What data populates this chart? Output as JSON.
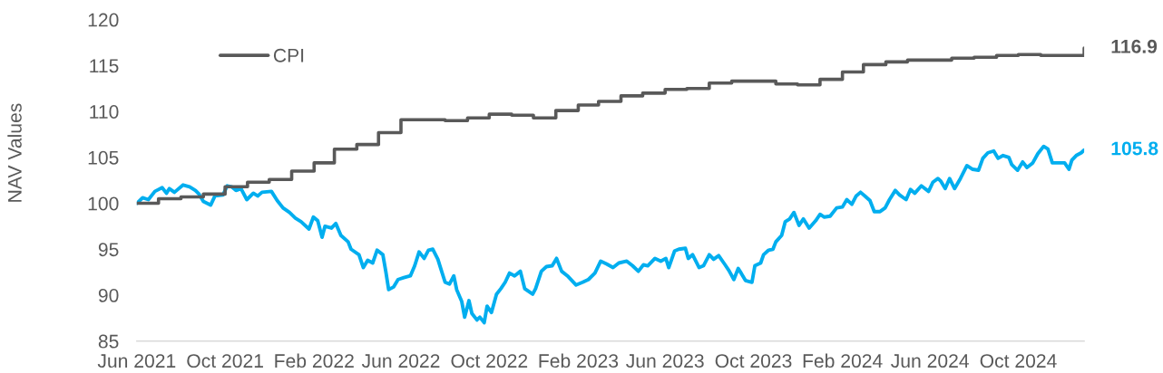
{
  "chart_data": {
    "type": "line",
    "ylabel": "NAV Values",
    "legend": "top left",
    "xlim": [
      "2021-06-01",
      "2024-12-31"
    ],
    "ylim": [
      85,
      120
    ],
    "xticks": [
      {
        "value": "2021-06-01",
        "label": "Jun 2021"
      },
      {
        "value": "2021-10-01",
        "label": "Oct 2021"
      },
      {
        "value": "2022-02-01",
        "label": "Feb 2022"
      },
      {
        "value": "2022-06-01",
        "label": "Jun 2022"
      },
      {
        "value": "2022-10-01",
        "label": "Oct 2022"
      },
      {
        "value": "2023-02-01",
        "label": "Feb 2023"
      },
      {
        "value": "2023-06-01",
        "label": "Jun 2023"
      },
      {
        "value": "2023-10-01",
        "label": "Oct 2023"
      },
      {
        "value": "2024-02-01",
        "label": "Feb 2024"
      },
      {
        "value": "2024-06-01",
        "label": "Jun 2024"
      },
      {
        "value": "2024-10-01",
        "label": "Oct 2024"
      }
    ],
    "yticks": [
      85,
      90,
      95,
      100,
      105,
      110,
      115,
      120
    ],
    "series": [
      {
        "color": "#00aeef",
        "x": [
          "2021-06-01",
          "2021-06-09",
          "2021-06-17",
          "2021-06-26",
          "2021-07-06",
          "2021-07-12",
          "2021-07-16",
          "2021-07-23",
          "2021-08-04",
          "2021-08-13",
          "2021-08-21",
          "2021-08-26",
          "2021-09-01",
          "2021-09-11",
          "2021-09-17",
          "2021-09-28",
          "2021-10-04",
          "2021-10-10",
          "2021-10-16",
          "2021-10-23",
          "2021-10-31",
          "2021-11-09",
          "2021-11-15",
          "2021-11-21",
          "2021-12-04",
          "2021-12-12",
          "2021-12-20",
          "2021-12-29",
          "2022-01-06",
          "2022-01-14",
          "2022-01-25",
          "2022-01-31",
          "2022-02-06",
          "2022-02-12",
          "2022-02-16",
          "2022-02-25",
          "2022-03-03",
          "2022-03-10",
          "2022-03-20",
          "2022-03-24",
          "2022-04-04",
          "2022-04-10",
          "2022-04-16",
          "2022-04-23",
          "2022-04-29",
          "2022-05-07",
          "2022-05-11",
          "2022-05-15",
          "2022-05-22",
          "2022-05-28",
          "2022-06-05",
          "2022-06-14",
          "2022-06-20",
          "2022-06-26",
          "2022-07-03",
          "2022-07-09",
          "2022-07-15",
          "2022-07-22",
          "2022-07-26",
          "2022-08-01",
          "2022-08-07",
          "2022-08-13",
          "2022-08-17",
          "2022-08-24",
          "2022-08-28",
          "2022-09-03",
          "2022-09-07",
          "2022-09-14",
          "2022-09-18",
          "2022-09-24",
          "2022-09-28",
          "2022-10-04",
          "2022-10-11",
          "2022-10-17",
          "2022-10-23",
          "2022-10-29",
          "2022-11-05",
          "2022-11-13",
          "2022-11-19",
          "2022-11-30",
          "2022-12-04",
          "2022-12-12",
          "2022-12-19",
          "2022-12-27",
          "2023-01-02",
          "2023-01-09",
          "2023-01-17",
          "2023-01-29",
          "2023-02-07",
          "2023-02-15",
          "2023-02-24",
          "2023-03-04",
          "2023-03-12",
          "2023-03-21",
          "2023-03-29",
          "2023-04-09",
          "2023-04-17",
          "2023-04-25",
          "2023-05-02",
          "2023-05-08",
          "2023-05-18",
          "2023-05-26",
          "2023-06-02",
          "2023-06-06",
          "2023-06-14",
          "2023-06-20",
          "2023-06-29",
          "2023-07-03",
          "2023-07-09",
          "2023-07-18",
          "2023-07-24",
          "2023-08-01",
          "2023-08-07",
          "2023-08-14",
          "2023-08-22",
          "2023-08-28",
          "2023-09-04",
          "2023-09-10",
          "2023-09-14",
          "2023-09-20",
          "2023-09-29",
          "2023-10-03",
          "2023-10-11",
          "2023-10-15",
          "2023-10-22",
          "2023-10-28",
          "2023-11-01",
          "2023-11-09",
          "2023-11-14",
          "2023-11-20",
          "2023-11-26",
          "2023-12-03",
          "2023-12-09",
          "2023-12-17",
          "2023-12-26",
          "2024-01-01",
          "2024-01-07",
          "2024-01-15",
          "2024-01-24",
          "2024-02-01",
          "2024-02-07",
          "2024-02-14",
          "2024-02-20",
          "2024-02-26",
          "2024-03-03",
          "2024-03-10",
          "2024-03-16",
          "2024-03-24",
          "2024-03-31",
          "2024-04-06",
          "2024-04-14",
          "2024-04-20",
          "2024-04-29",
          "2024-05-05",
          "2024-05-11",
          "2024-05-20",
          "2024-05-30",
          "2024-06-05",
          "2024-06-12",
          "2024-06-16",
          "2024-06-22",
          "2024-06-28",
          "2024-07-05",
          "2024-07-13",
          "2024-07-22",
          "2024-07-30",
          "2024-08-07",
          "2024-08-13",
          "2024-08-20",
          "2024-08-28",
          "2024-09-03",
          "2024-09-10",
          "2024-09-18",
          "2024-09-22",
          "2024-09-30",
          "2024-10-07",
          "2024-10-13",
          "2024-10-21",
          "2024-10-28",
          "2024-11-05",
          "2024-11-11",
          "2024-11-17",
          "2024-11-26",
          "2024-12-04",
          "2024-12-10",
          "2024-12-14",
          "2024-12-20",
          "2024-12-27",
          "2024-12-31"
        ],
        "values": [
          100.0,
          100.6,
          100.4,
          101.3,
          101.7,
          101.1,
          101.6,
          101.2,
          102.0,
          101.8,
          101.4,
          101.0,
          100.2,
          99.8,
          100.8,
          100.9,
          101.9,
          101.8,
          101.4,
          101.6,
          100.4,
          101.1,
          100.8,
          101.2,
          101.3,
          100.3,
          99.5,
          99.0,
          98.4,
          98.0,
          97.2,
          98.5,
          98.1,
          96.3,
          97.5,
          97.3,
          97.8,
          96.5,
          95.8,
          95.0,
          94.4,
          93.0,
          93.8,
          93.5,
          94.9,
          94.4,
          92.6,
          90.6,
          90.9,
          91.7,
          91.9,
          92.1,
          93.2,
          94.7,
          94.0,
          94.9,
          95.0,
          93.9,
          92.9,
          91.4,
          91.2,
          92.1,
          90.6,
          89.3,
          87.6,
          89.4,
          88.0,
          87.3,
          87.6,
          87.0,
          88.8,
          88.1,
          90.1,
          90.7,
          91.4,
          92.4,
          92.1,
          92.6,
          90.7,
          90.1,
          90.7,
          92.6,
          93.1,
          93.2,
          94.0,
          92.6,
          92.1,
          91.1,
          91.4,
          91.7,
          92.4,
          93.7,
          93.4,
          93.0,
          93.5,
          93.7,
          93.2,
          92.6,
          93.3,
          93.2,
          94.0,
          93.7,
          94.0,
          93.0,
          94.8,
          95.0,
          95.1,
          94.0,
          94.4,
          93.0,
          93.2,
          94.4,
          93.9,
          94.3,
          93.4,
          92.7,
          91.7,
          92.9,
          92.4,
          91.6,
          91.4,
          93.2,
          93.5,
          94.4,
          94.9,
          95.0,
          95.8,
          96.5,
          98.0,
          98.3,
          99.0,
          97.6,
          98.3,
          97.3,
          98.1,
          98.8,
          98.5,
          98.6,
          99.5,
          99.6,
          100.4,
          99.9,
          100.8,
          101.2,
          100.8,
          100.3,
          99.1,
          99.1,
          99.5,
          100.4,
          101.4,
          100.9,
          100.4,
          101.5,
          101.1,
          101.9,
          101.3,
          102.3,
          102.7,
          102.4,
          101.6,
          102.7,
          101.6,
          102.7,
          104.1,
          103.7,
          103.6,
          104.9,
          105.5,
          105.7,
          104.9,
          105.2,
          105.0,
          104.2,
          103.6,
          104.5,
          103.9,
          104.4,
          105.4,
          106.2,
          105.9,
          104.4,
          104.4,
          104.4,
          103.7,
          104.7,
          105.2,
          105.5,
          105.8
        ],
        "value_labels": [
          null,
          null,
          null,
          null,
          null,
          null,
          null,
          null,
          null,
          null,
          null,
          null,
          null,
          null,
          null,
          null,
          null,
          null,
          null,
          null,
          null,
          null,
          null,
          null,
          null,
          null,
          null,
          null,
          null,
          null,
          null,
          null,
          null,
          null,
          null,
          null,
          null,
          null,
          null,
          null,
          null,
          null,
          null,
          null,
          null,
          null,
          null,
          null,
          null,
          null,
          null,
          null,
          null,
          null,
          null,
          null,
          null,
          null,
          null,
          null,
          null,
          null,
          null,
          null,
          null,
          null,
          null,
          null,
          null,
          null,
          null,
          null,
          null,
          null,
          null,
          null,
          null,
          null,
          null,
          null,
          null,
          null,
          null,
          null,
          null,
          null,
          null,
          null,
          null,
          null,
          null,
          null,
          null,
          null,
          null,
          null,
          null,
          null,
          null,
          null,
          null,
          null,
          null,
          null,
          null,
          null,
          null,
          null,
          null,
          null,
          null,
          null,
          null,
          null,
          null,
          null,
          null,
          null,
          null,
          null,
          null,
          null,
          null,
          null,
          null,
          null,
          null,
          null,
          null,
          null,
          null,
          null,
          null,
          null,
          null,
          null,
          null,
          null,
          null,
          null,
          null,
          null,
          null,
          null,
          null,
          null,
          null,
          null,
          null,
          null,
          null,
          null,
          null,
          null,
          null,
          null,
          null,
          null,
          null,
          null,
          null,
          null,
          null,
          null,
          null,
          null,
          null,
          null,
          null,
          null,
          null,
          null,
          null,
          null,
          null,
          null,
          null,
          null,
          null,
          null,
          null,
          null,
          null,
          null,
          null,
          null,
          null,
          null,
          "105.8"
        ]
      },
      {
        "name": "CPI",
        "type": "step",
        "color": "#595959",
        "x": [
          "2021-06-01",
          "2021-07-01",
          "2021-08-01",
          "2021-09-01",
          "2021-10-01",
          "2021-11-01",
          "2021-12-01",
          "2022-01-01",
          "2022-02-01",
          "2022-03-01",
          "2022-04-01",
          "2022-05-01",
          "2022-06-01",
          "2022-07-01",
          "2022-08-01",
          "2022-09-01",
          "2022-10-01",
          "2022-11-01",
          "2022-12-01",
          "2023-01-01",
          "2023-02-01",
          "2023-03-01",
          "2023-04-01",
          "2023-05-01",
          "2023-06-01",
          "2023-07-01",
          "2023-08-01",
          "2023-09-01",
          "2023-10-01",
          "2023-11-01",
          "2023-12-01",
          "2024-01-01",
          "2024-02-01",
          "2024-03-01",
          "2024-04-01",
          "2024-05-01",
          "2024-06-01",
          "2024-07-01",
          "2024-08-01",
          "2024-09-01",
          "2024-10-01",
          "2024-11-01",
          "2024-12-01",
          "2024-12-31"
        ],
        "values": [
          100.0,
          100.5,
          100.7,
          101.0,
          101.8,
          102.3,
          102.6,
          103.5,
          104.4,
          105.9,
          106.4,
          107.7,
          109.1,
          109.1,
          109.0,
          109.3,
          109.7,
          109.6,
          109.3,
          110.1,
          110.7,
          111.1,
          111.7,
          112.0,
          112.4,
          112.5,
          113.1,
          113.3,
          113.3,
          113.0,
          112.9,
          113.5,
          114.3,
          115.1,
          115.4,
          115.6,
          115.6,
          115.8,
          115.9,
          116.1,
          116.2,
          116.1,
          116.1,
          116.9
        ],
        "value_labels": [
          null,
          null,
          null,
          null,
          null,
          null,
          null,
          null,
          null,
          null,
          null,
          null,
          null,
          null,
          null,
          null,
          null,
          null,
          null,
          null,
          null,
          null,
          null,
          null,
          null,
          null,
          null,
          null,
          null,
          null,
          null,
          null,
          null,
          null,
          null,
          null,
          null,
          null,
          null,
          null,
          null,
          null,
          null,
          "116.9"
        ]
      }
    ]
  }
}
